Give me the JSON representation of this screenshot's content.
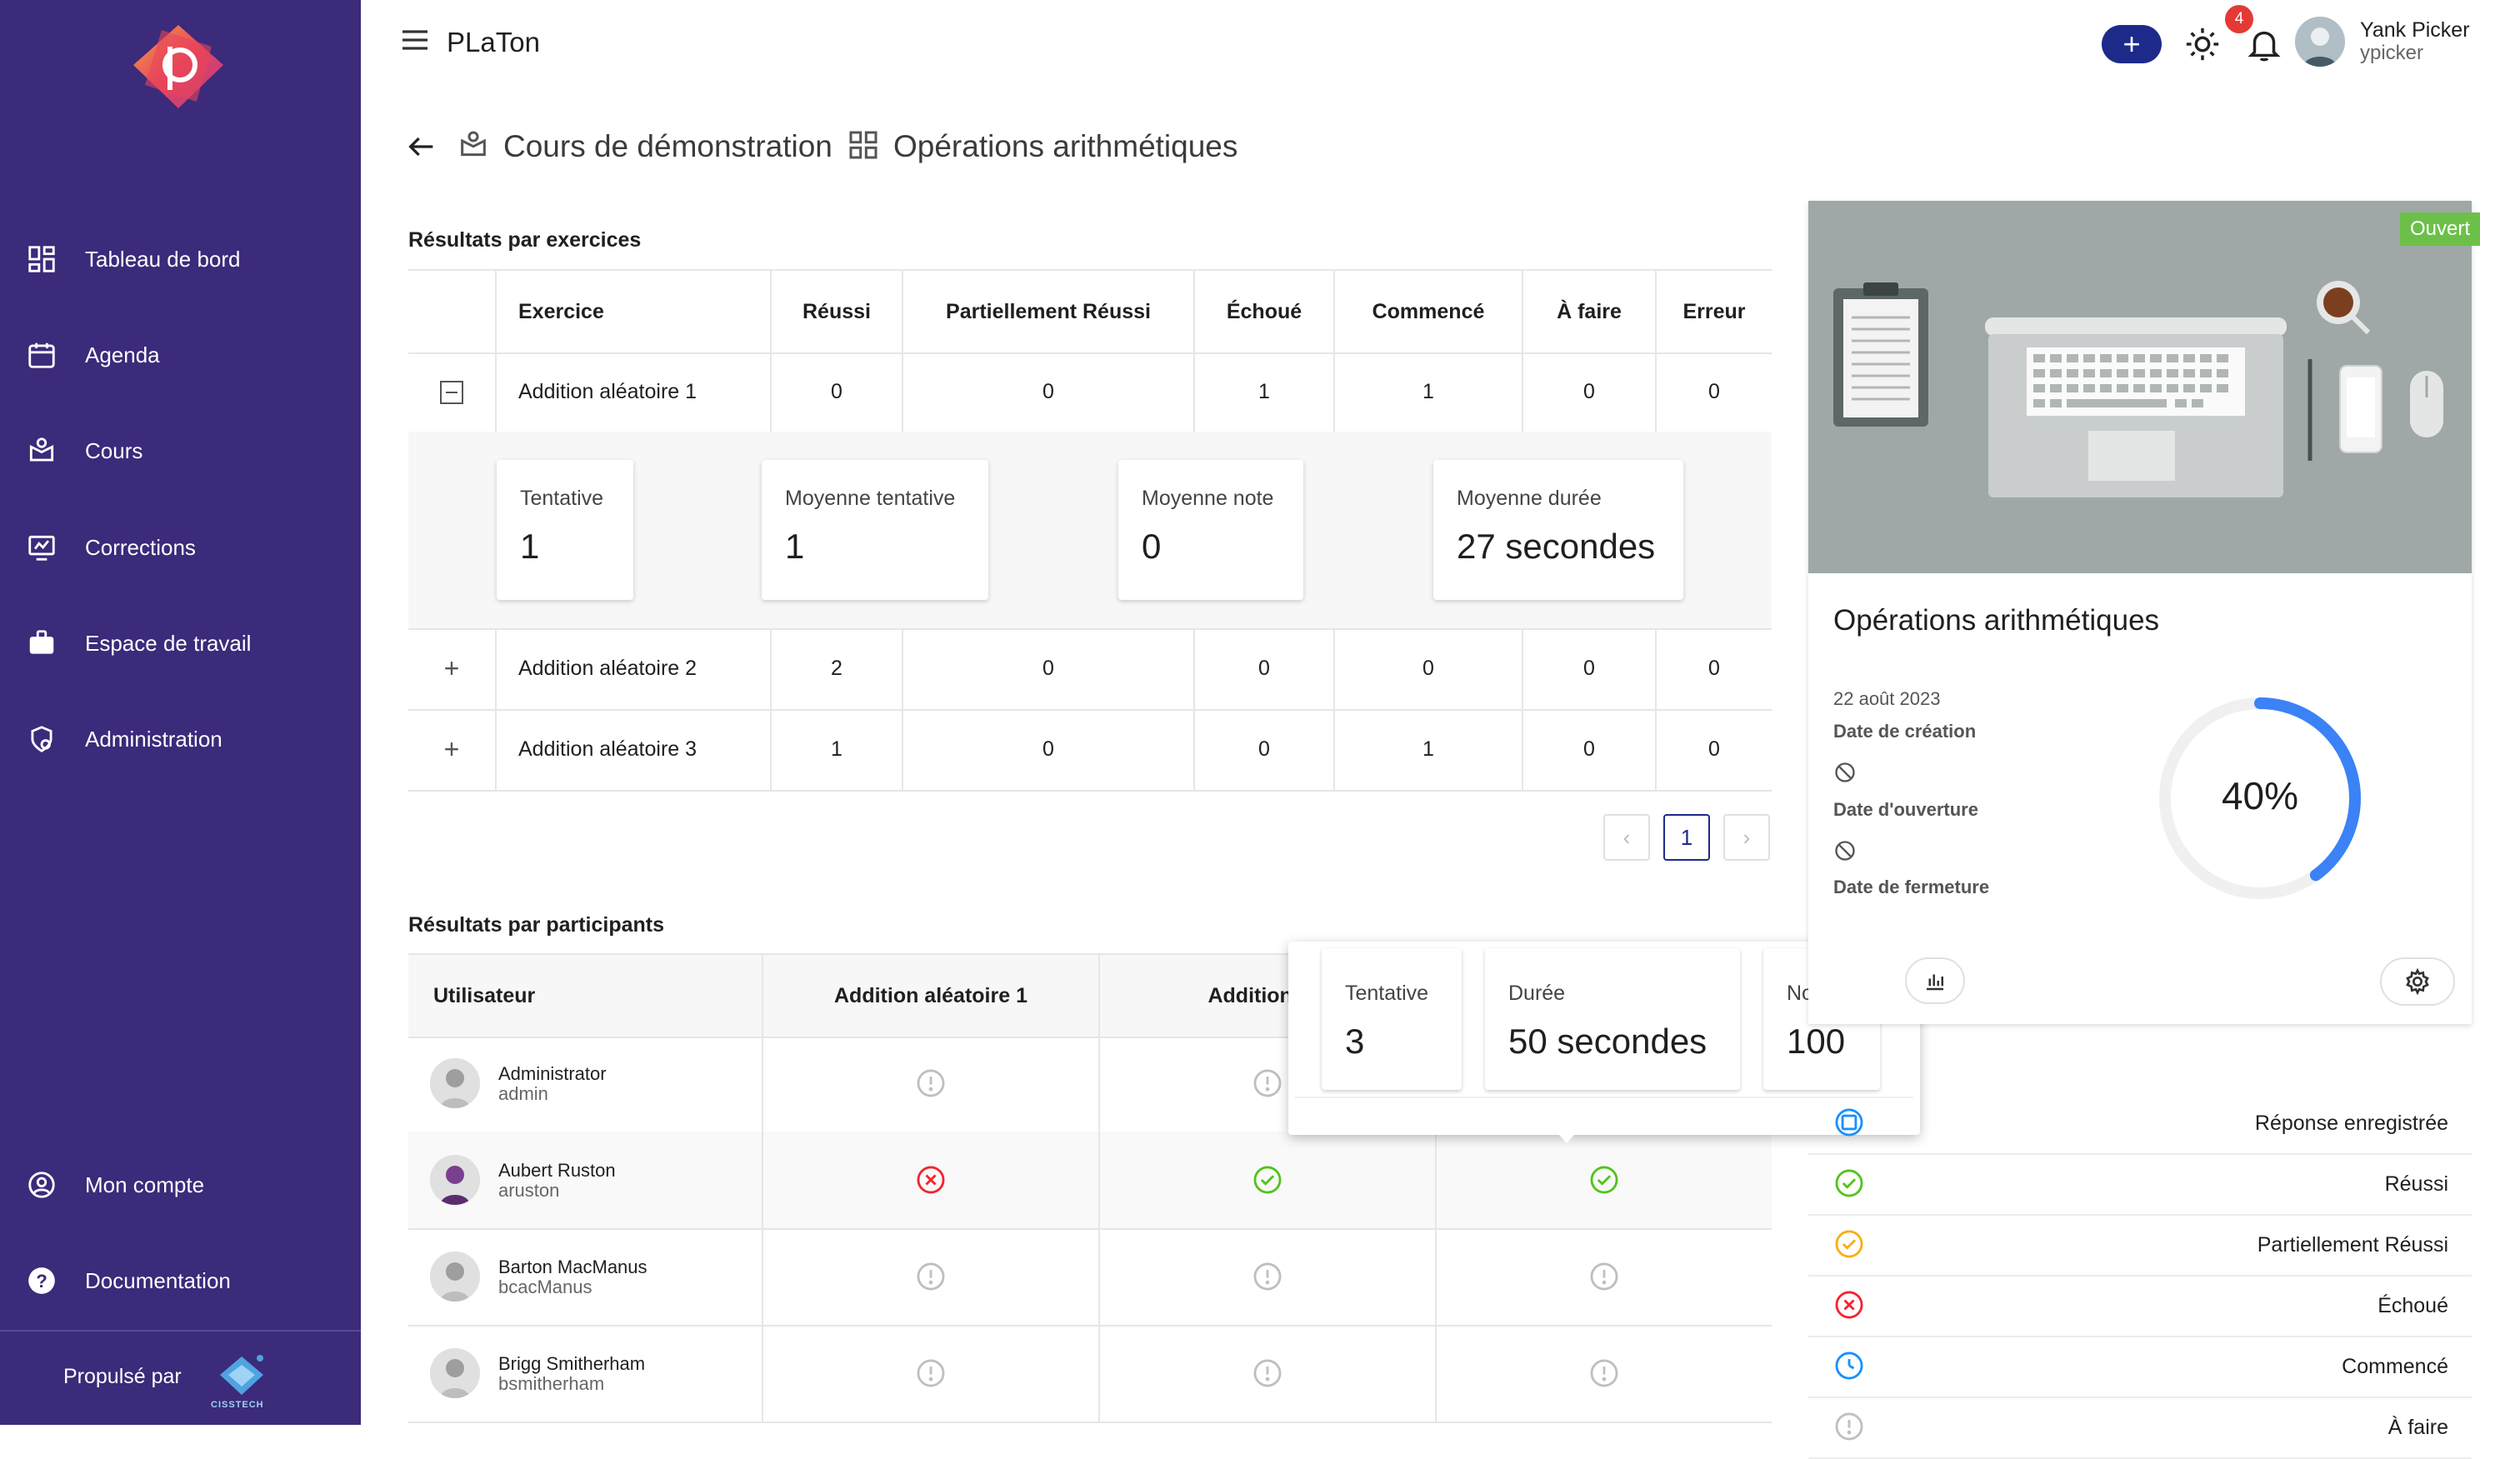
{
  "app": {
    "title": "PLaTon"
  },
  "sidebar": {
    "items": [
      {
        "label": "Tableau de bord",
        "icon": "dashboard-icon"
      },
      {
        "label": "Agenda",
        "icon": "calendar-icon"
      },
      {
        "label": "Cours",
        "icon": "course-icon"
      },
      {
        "label": "Corrections",
        "icon": "corrections-icon"
      },
      {
        "label": "Espace de travail",
        "icon": "briefcase-icon"
      },
      {
        "label": "Administration",
        "icon": "admin-icon"
      }
    ],
    "bottom_items": [
      {
        "label": "Mon compte",
        "icon": "account-icon"
      },
      {
        "label": "Documentation",
        "icon": "help-icon"
      }
    ],
    "footer": {
      "label": "Propulsé par",
      "logo_text": "CISSTECH"
    }
  },
  "header": {
    "notifications_count": "4",
    "user": {
      "name": "Yank Picker",
      "login": "ypicker"
    }
  },
  "breadcrumb": {
    "course": "Cours de démonstration",
    "activity": "Opérations arithmétiques"
  },
  "exercises": {
    "title": "Résultats par exercices",
    "columns": [
      "Exercice",
      "Réussi",
      "Partiellement Réussi",
      "Échoué",
      "Commencé",
      "À faire",
      "Erreur"
    ],
    "rows": [
      {
        "name": "Addition aléatoire 1",
        "values": [
          "0",
          "0",
          "1",
          "1",
          "0",
          "0"
        ],
        "expanded": true
      },
      {
        "name": "Addition aléatoire 2",
        "values": [
          "2",
          "0",
          "0",
          "0",
          "0",
          "0"
        ],
        "expanded": false
      },
      {
        "name": "Addition aléatoire 3",
        "values": [
          "1",
          "0",
          "0",
          "1",
          "0",
          "0"
        ],
        "expanded": false
      }
    ],
    "details": [
      {
        "label": "Tentative",
        "value": "1"
      },
      {
        "label": "Moyenne tentative",
        "value": "1"
      },
      {
        "label": "Moyenne note",
        "value": "0"
      },
      {
        "label": "Moyenne durée",
        "value": "27 secondes"
      }
    ],
    "pager": {
      "prev": "‹",
      "current": "1",
      "next": "›"
    }
  },
  "participants": {
    "title": "Résultats par participants",
    "columns": [
      "Utilisateur",
      "Addition aléatoire 1",
      "Addition alé"
    ],
    "rows": [
      {
        "name": "Administrator",
        "login": "admin",
        "statuses": [
          "todo",
          "todo",
          "todo"
        ]
      },
      {
        "name": "Aubert Ruston",
        "login": "aruston",
        "statuses": [
          "failed",
          "success",
          "success"
        ]
      },
      {
        "name": "Barton MacManus",
        "login": "bcacManus",
        "statuses": [
          "todo",
          "todo",
          "todo"
        ]
      },
      {
        "name": "Brigg Smitherham",
        "login": "bsmitherham",
        "statuses": [
          "todo",
          "todo",
          "todo"
        ]
      }
    ]
  },
  "tooltip": {
    "cards": [
      {
        "label": "Tentative",
        "value": "3"
      },
      {
        "label": "Durée",
        "value": "50 secondes"
      },
      {
        "label": "Note",
        "value": "100"
      }
    ]
  },
  "activity_card": {
    "badge": "Ouvert",
    "title": "Opérations arithmétiques",
    "creation_date": "22 août 2023",
    "creation_label": "Date de création",
    "opening_label": "Date d'ouverture",
    "closing_label": "Date de fermeture",
    "progress_label": "40%",
    "progress_value": 0.4
  },
  "legend": [
    {
      "label": "Réponse enregistrée",
      "icon": "saved-icon"
    },
    {
      "label": "Réussi",
      "icon": "success-icon"
    },
    {
      "label": "Partiellement Réussi",
      "icon": "partial-icon"
    },
    {
      "label": "Échoué",
      "icon": "failed-icon"
    },
    {
      "label": "Commencé",
      "icon": "started-icon"
    },
    {
      "label": "À faire",
      "icon": "todo-icon"
    }
  ],
  "colors": {
    "sidebar": "#3c2a7a",
    "primary": "#1e2a8a",
    "success": "#52c41a",
    "partial": "#faad14",
    "failed": "#f5222d",
    "started": "#1890ff",
    "todo": "#bfbfbf",
    "progress": "#3b82f6",
    "badge": "#6cc04a"
  }
}
